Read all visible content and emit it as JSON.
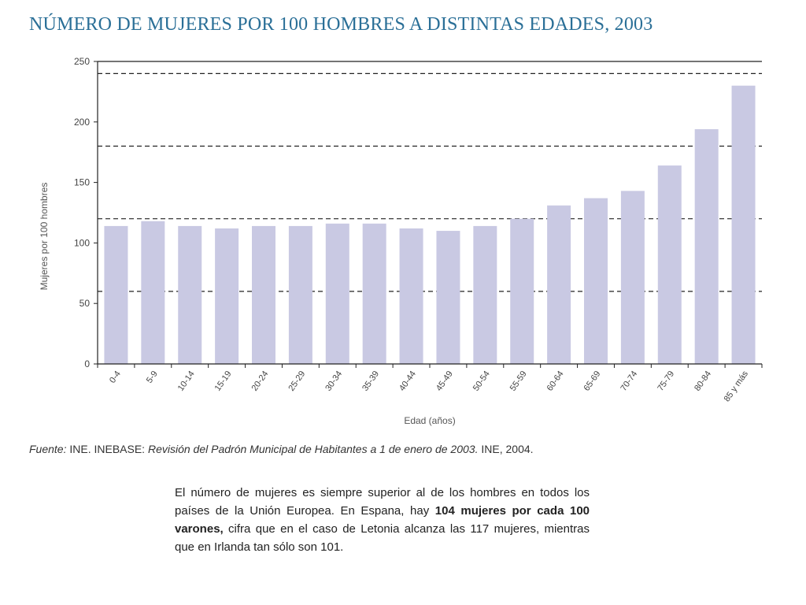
{
  "title": "NÚMERO DE MUJERES POR 100 HOMBRES A DISTINTAS EDADES, 2003",
  "colors": {
    "bar": "#c9c9e3",
    "title": "#2a6f97"
  },
  "chart_data": {
    "type": "bar",
    "categories": [
      "0-4",
      "5-9",
      "10-14",
      "15-19",
      "20-24",
      "25-29",
      "30-34",
      "35-39",
      "40-44",
      "45-49",
      "50-54",
      "55-59",
      "60-64",
      "65-69",
      "70-74",
      "75-79",
      "80-84",
      "85 y más"
    ],
    "values": [
      114,
      118,
      114,
      112,
      114,
      114,
      116,
      116,
      112,
      110,
      114,
      120,
      131,
      137,
      143,
      164,
      194,
      230
    ],
    "yticks": [
      "0",
      "50",
      "100",
      "150",
      "200",
      "250"
    ],
    "xlabel": "Edad (años)",
    "ylabel": "Mujeres por 100 hombres",
    "legend": "none",
    "grid": "dashed horizontal lines"
  },
  "source": {
    "prefix": "Fuente:",
    "org": " INE. INEBASE: ",
    "doc": "Revisión del Padrón Municipal de Habitantes a 1 de enero de 2003.",
    "suffix": " INE, 2004."
  },
  "note": {
    "part1": "El número de mujeres es siempre superior al de los hombres en todos los países de la Unión Europea. En Espana, hay ",
    "bold": "104 mujeres por cada 100 varones,",
    "part2": " cifra que en el caso de Letonia alcanza las 117 mujeres, mientras que en Irlanda tan sólo son 101."
  }
}
